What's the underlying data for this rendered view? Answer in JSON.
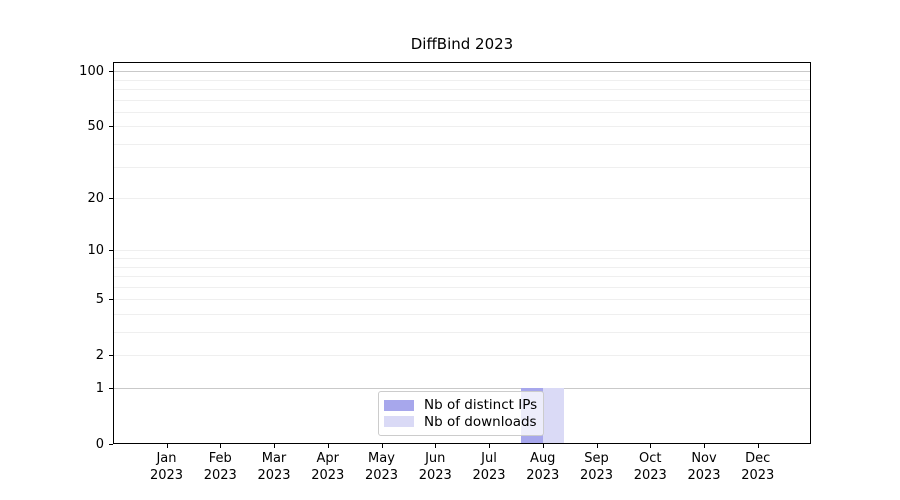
{
  "figure": {
    "background": "#ffffff"
  },
  "chart_data": {
    "type": "bar",
    "title": "DiffBind 2023",
    "xlabel": "",
    "ylabel": "",
    "categories": [
      {
        "month": "Jan",
        "year": "2023"
      },
      {
        "month": "Feb",
        "year": "2023"
      },
      {
        "month": "Mar",
        "year": "2023"
      },
      {
        "month": "Apr",
        "year": "2023"
      },
      {
        "month": "May",
        "year": "2023"
      },
      {
        "month": "Jun",
        "year": "2023"
      },
      {
        "month": "Jul",
        "year": "2023"
      },
      {
        "month": "Aug",
        "year": "2023"
      },
      {
        "month": "Sep",
        "year": "2023"
      },
      {
        "month": "Oct",
        "year": "2023"
      },
      {
        "month": "Nov",
        "year": "2023"
      },
      {
        "month": "Dec",
        "year": "2023"
      }
    ],
    "series": [
      {
        "name": "Nb of distinct IPs",
        "color": "#a7a7ec",
        "values": [
          0,
          0,
          0,
          0,
          0,
          0,
          0,
          1,
          0,
          0,
          0,
          0
        ]
      },
      {
        "name": "Nb of downloads",
        "color": "#dadaf6",
        "values": [
          0,
          0,
          0,
          0,
          0,
          0,
          0,
          1,
          0,
          0,
          0,
          0
        ]
      }
    ],
    "y_scale": "log1p",
    "y_ticks": [
      0,
      1,
      2,
      5,
      10,
      20,
      50,
      100
    ],
    "y_major_gridlines": [
      1,
      100
    ],
    "y_minor_gridlines": [
      2,
      3,
      4,
      5,
      6,
      7,
      8,
      9,
      10,
      20,
      30,
      40,
      50,
      60,
      70,
      80,
      90
    ],
    "ylim": [
      0,
      112
    ],
    "grid": "horizontal",
    "legend_position": "inside-bottom-center"
  },
  "colors": {
    "grid_major": "#c9c9c9",
    "grid_minor": "#efefef",
    "spine": "#000000",
    "legend_border": "#cccccc"
  }
}
